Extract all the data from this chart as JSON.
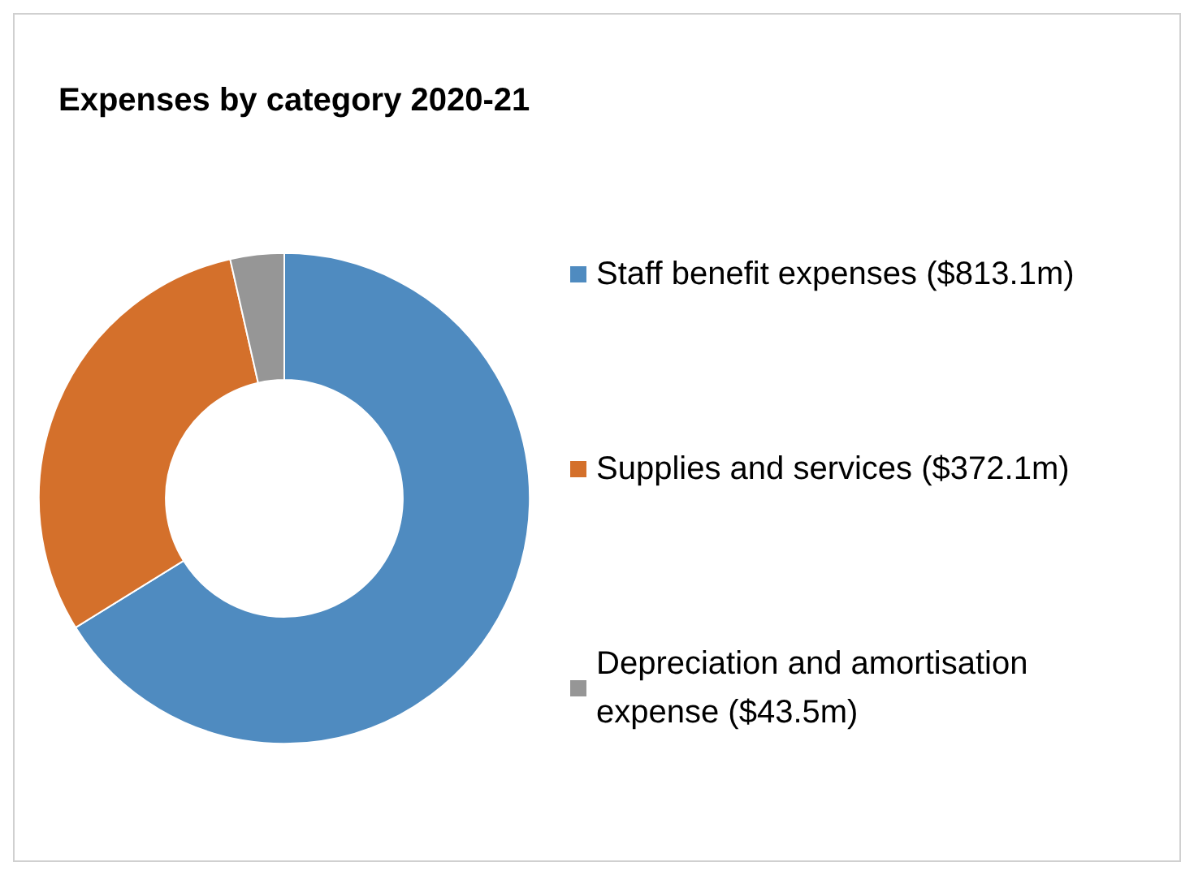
{
  "chart_data": {
    "type": "donut",
    "title": "Expenses by category 2020-21",
    "categories": [
      "Staff benefit expenses ($813.1m)",
      "Supplies and services ($372.1m)",
      "Depreciation and amortisation expense ($43.5m)"
    ],
    "values": [
      813.1,
      372.1,
      43.5
    ],
    "colors": [
      "#4f8bc0",
      "#d4702b",
      "#969696"
    ],
    "legend": "right"
  }
}
